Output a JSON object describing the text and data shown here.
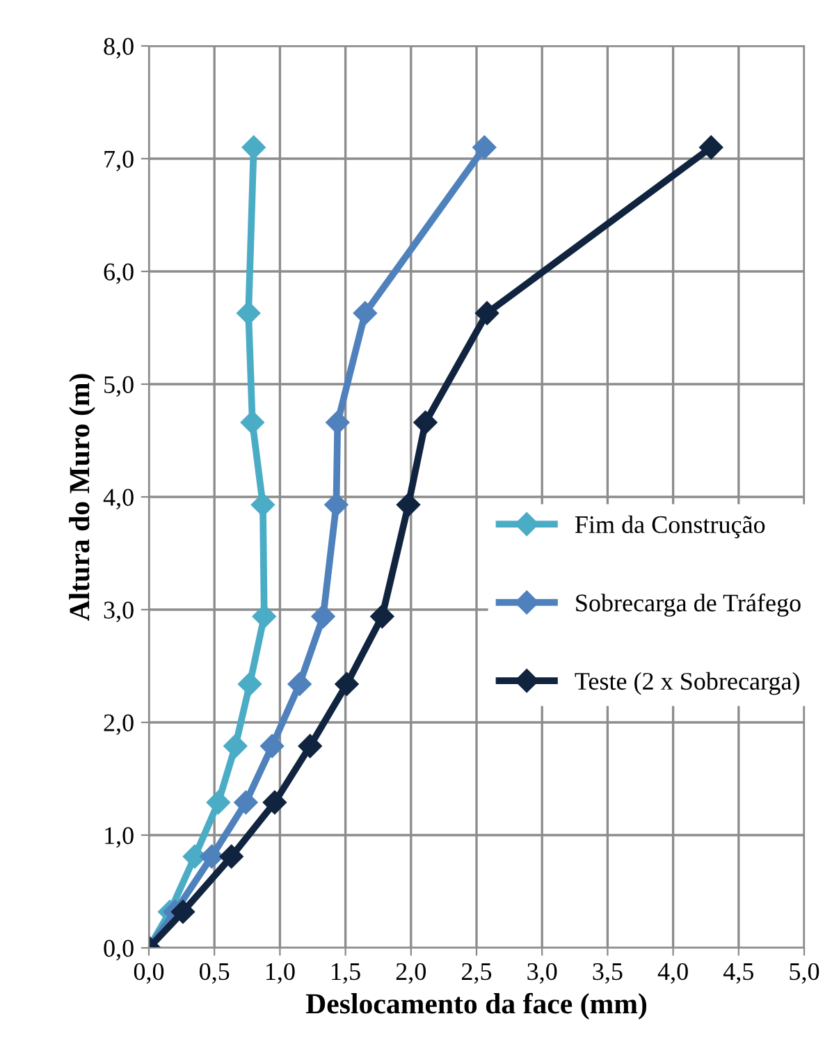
{
  "chart_data": {
    "type": "line",
    "xlabel": "Deslocamento da face (mm)",
    "ylabel": "Altura do Muro (m)",
    "xlim": [
      0,
      5
    ],
    "ylim": [
      0,
      8
    ],
    "xticks": [
      {
        "value": 0,
        "label": "0,0"
      },
      {
        "value": 0.5,
        "label": "0,5"
      },
      {
        "value": 1,
        "label": "1,0"
      },
      {
        "value": 1.5,
        "label": "1,5"
      },
      {
        "value": 2,
        "label": "2,0"
      },
      {
        "value": 2.5,
        "label": "2,5"
      },
      {
        "value": 3,
        "label": "3,0"
      },
      {
        "value": 3.5,
        "label": "3,5"
      },
      {
        "value": 4,
        "label": "4,0"
      },
      {
        "value": 4.5,
        "label": "4,5"
      },
      {
        "value": 5,
        "label": "5,0"
      }
    ],
    "yticks": [
      {
        "value": 0,
        "label": "0,0"
      },
      {
        "value": 1,
        "label": "1,0"
      },
      {
        "value": 2,
        "label": "2,0"
      },
      {
        "value": 3,
        "label": "3,0"
      },
      {
        "value": 4,
        "label": "4,0"
      },
      {
        "value": 5,
        "label": "5,0"
      },
      {
        "value": 6,
        "label": "6,0"
      },
      {
        "value": 7,
        "label": "7,0"
      },
      {
        "value": 8,
        "label": "8,0"
      }
    ],
    "grid": true,
    "legend": "right",
    "marker": "diamond",
    "line_style": "solid",
    "series": [
      {
        "name": "Fim da Construção",
        "color": "#4bacc6",
        "x": [
          0,
          0.16,
          0.35,
          0.53,
          0.66,
          0.77,
          0.88,
          0.87,
          0.79,
          0.76,
          0.8
        ],
        "values": [
          0,
          0.32,
          0.81,
          1.29,
          1.79,
          2.34,
          2.94,
          3.93,
          4.66,
          5.63,
          7.1
        ]
      },
      {
        "name": "Sobrecarga de Tráfego",
        "color": "#4f81bd",
        "x": [
          0,
          0.2,
          0.48,
          0.74,
          0.94,
          1.15,
          1.33,
          1.43,
          1.44,
          1.65,
          2.56
        ],
        "values": [
          0,
          0.32,
          0.81,
          1.29,
          1.79,
          2.34,
          2.94,
          3.93,
          4.66,
          5.63,
          7.1
        ]
      },
      {
        "name": "Teste (2 x Sobrecarga)",
        "color": "#10243f",
        "x": [
          0,
          0.26,
          0.63,
          0.96,
          1.23,
          1.51,
          1.78,
          1.98,
          2.11,
          2.58,
          4.29
        ],
        "values": [
          0,
          0.32,
          0.81,
          1.29,
          1.79,
          2.34,
          2.94,
          3.93,
          4.66,
          5.63,
          7.1
        ]
      }
    ]
  }
}
